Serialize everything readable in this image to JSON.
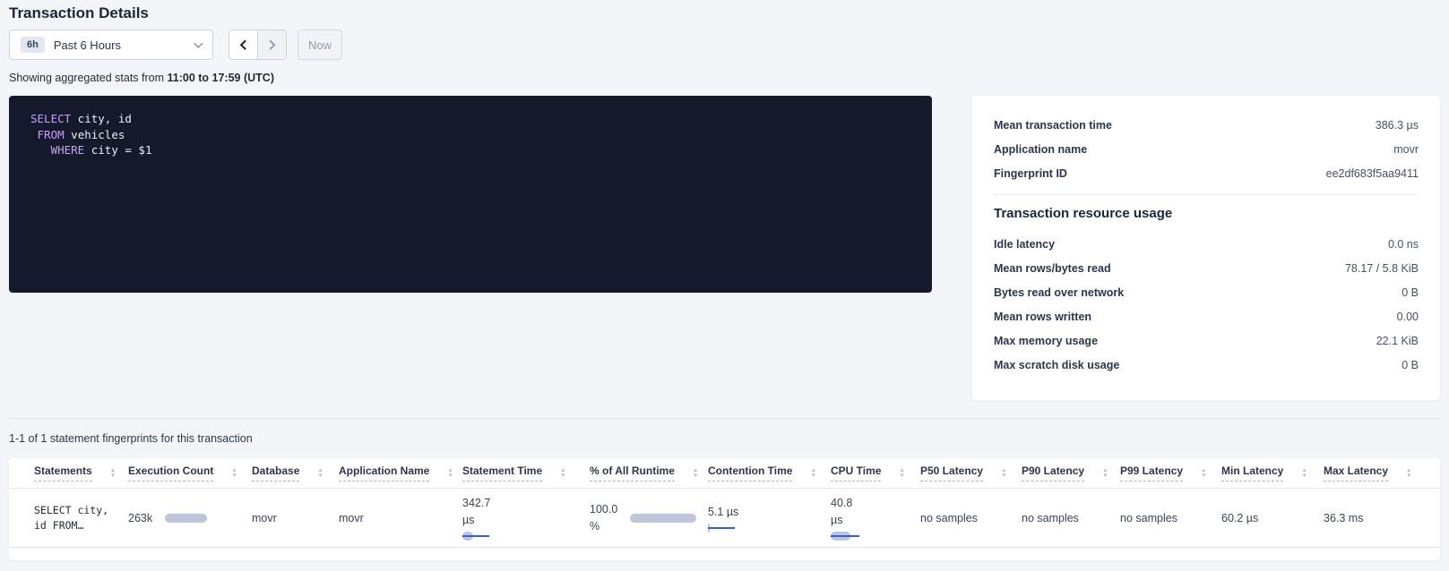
{
  "header": {
    "title": "Transaction Details",
    "time_picker": {
      "badge": "6h",
      "label": "Past 6 Hours",
      "now_label": "Now"
    },
    "subtitle_prefix": "Showing aggregated stats from ",
    "subtitle_bold": "11:00 to 17:59 (UTC)"
  },
  "sql": {
    "lines": [
      {
        "indent": "",
        "keyword": "SELECT",
        "rest": " city, id"
      },
      {
        "indent": " ",
        "keyword": "FROM",
        "rest": " vehicles"
      },
      {
        "indent": "   ",
        "keyword": "WHERE",
        "rest": " city = $1"
      }
    ]
  },
  "summary": {
    "overview_rows": [
      {
        "label": "Mean transaction time",
        "value": "386.3 µs"
      },
      {
        "label": "Application name",
        "value": "movr"
      },
      {
        "label": "Fingerprint ID",
        "value": "ee2df683f5aa9411"
      }
    ],
    "resource_heading": "Transaction resource usage",
    "resource_rows": [
      {
        "label": "Idle latency",
        "value": "0.0 ns"
      },
      {
        "label": "Mean rows/bytes read",
        "value": "78.17 / 5.8 KiB"
      },
      {
        "label": "Bytes read over network",
        "value": "0 B"
      },
      {
        "label": "Mean rows written",
        "value": "0.00"
      },
      {
        "label": "Max memory usage",
        "value": "22.1 KiB"
      },
      {
        "label": "Max scratch disk usage",
        "value": "0 B"
      }
    ]
  },
  "statements_section": {
    "count_text": "1-1 of 1 statement fingerprints for this transaction",
    "table": {
      "headers": [
        "Statements",
        "Execution Count",
        "Database",
        "Application Name",
        "Statement Time",
        "% of All Runtime",
        "Contention Time",
        "CPU Time",
        "P50 Latency",
        "P90 Latency",
        "P99 Latency",
        "Min Latency",
        "Max Latency"
      ],
      "row": {
        "statement_line1": "SELECT city,",
        "statement_line2": "id FROM…",
        "execution_count": "263k",
        "database": "movr",
        "application_name": "movr",
        "statement_time_value": "342.7",
        "statement_time_unit": "µs",
        "runtime_value": "100.0",
        "runtime_unit": "%",
        "contention_time": "5.1 µs",
        "cpu_time_value": "40.8",
        "cpu_time_unit": "µs",
        "p50": "no samples",
        "p90": "no samples",
        "p99": "no samples",
        "min_latency": "60.2 µs",
        "max_latency": "36.3 ms"
      }
    }
  },
  "colors": {
    "accent_blue": "#3a5adf",
    "bar_gray": "#bfc5d8",
    "sql_keyword_purple": "#c3a2f3",
    "sql_background": "#141a2b",
    "page_background": "#f4f5f9"
  }
}
